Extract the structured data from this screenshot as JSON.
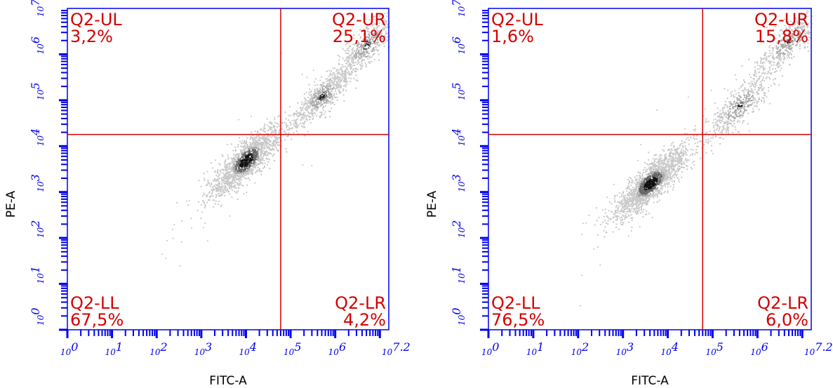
{
  "chart_data": [
    {
      "type": "scatter",
      "subtype": "flow-cytometry density dot plot",
      "xlabel": "FITC-A",
      "ylabel": "PE-A",
      "x_scale": "log",
      "y_scale": "log",
      "xlim": [
        1,
        15848932
      ],
      "ylim": [
        1,
        10000000
      ],
      "x_tick_labels": [
        {
          "base": "10",
          "exp": "0"
        },
        {
          "base": "10",
          "exp": "1"
        },
        {
          "base": "10",
          "exp": "2"
        },
        {
          "base": "10",
          "exp": "3"
        },
        {
          "base": "10",
          "exp": "4"
        },
        {
          "base": "10",
          "exp": "5"
        },
        {
          "base": "10",
          "exp": "6"
        },
        {
          "base": "10",
          "exp": "7.2"
        }
      ],
      "y_tick_labels": [
        {
          "base": "10",
          "exp": "0"
        },
        {
          "base": "10",
          "exp": "1"
        },
        {
          "base": "10",
          "exp": "2"
        },
        {
          "base": "10",
          "exp": "3"
        },
        {
          "base": "10",
          "exp": "4"
        },
        {
          "base": "10",
          "exp": "5"
        },
        {
          "base": "10",
          "exp": "6"
        },
        {
          "base": "10",
          "exp": "7"
        }
      ],
      "gate": {
        "x": 60000,
        "y": 18000
      },
      "quadrants": [
        {
          "name": "Q2-UL",
          "percent": "3,2%",
          "position": "top-left"
        },
        {
          "name": "Q2-UR",
          "percent": "25,1%",
          "position": "top-right"
        },
        {
          "name": "Q2-LL",
          "percent": "67,5%",
          "position": "bottom-left"
        },
        {
          "name": "Q2-LR",
          "percent": "4,2%",
          "position": "bottom-right"
        }
      ],
      "populations": [
        {
          "log_x": 4.0,
          "log_y": 3.7,
          "weight": 1.0,
          "spread": 0.35
        },
        {
          "log_x": 5.7,
          "log_y": 5.1,
          "weight": 0.45,
          "spread": 0.3
        },
        {
          "log_x": 6.7,
          "log_y": 6.2,
          "weight": 0.35,
          "spread": 0.35
        }
      ],
      "grid": false,
      "colors": {
        "axis": "#0000ee",
        "gate": "#d40000",
        "dots_light": "#c8c8c8",
        "dots_dark": "#111111"
      }
    },
    {
      "type": "scatter",
      "subtype": "flow-cytometry density dot plot",
      "xlabel": "FITC-A",
      "ylabel": "PE-A",
      "x_scale": "log",
      "y_scale": "log",
      "xlim": [
        1,
        15848932
      ],
      "ylim": [
        1,
        10000000
      ],
      "x_tick_labels": [
        {
          "base": "10",
          "exp": "0"
        },
        {
          "base": "10",
          "exp": "1"
        },
        {
          "base": "10",
          "exp": "2"
        },
        {
          "base": "10",
          "exp": "3"
        },
        {
          "base": "10",
          "exp": "4"
        },
        {
          "base": "10",
          "exp": "5"
        },
        {
          "base": "10",
          "exp": "6"
        },
        {
          "base": "10",
          "exp": "7.2"
        }
      ],
      "y_tick_labels": [
        {
          "base": "10",
          "exp": "0"
        },
        {
          "base": "10",
          "exp": "1"
        },
        {
          "base": "10",
          "exp": "2"
        },
        {
          "base": "10",
          "exp": "3"
        },
        {
          "base": "10",
          "exp": "4"
        },
        {
          "base": "10",
          "exp": "5"
        },
        {
          "base": "10",
          "exp": "6"
        },
        {
          "base": "10",
          "exp": "7"
        }
      ],
      "gate": {
        "x": 60000,
        "y": 18000
      },
      "quadrants": [
        {
          "name": "Q2-UL",
          "percent": "1,6%",
          "position": "top-left"
        },
        {
          "name": "Q2-UR",
          "percent": "15,8%",
          "position": "top-right"
        },
        {
          "name": "Q2-LL",
          "percent": "76,5%",
          "position": "bottom-left"
        },
        {
          "name": "Q2-LR",
          "percent": "6,0%",
          "position": "bottom-right"
        }
      ],
      "populations": [
        {
          "log_x": 3.6,
          "log_y": 3.2,
          "weight": 1.0,
          "spread": 0.35
        },
        {
          "log_x": 5.6,
          "log_y": 4.9,
          "weight": 0.3,
          "spread": 0.35
        },
        {
          "log_x": 6.7,
          "log_y": 6.3,
          "weight": 0.3,
          "spread": 0.35
        }
      ],
      "grid": false,
      "colors": {
        "axis": "#0000ee",
        "gate": "#d40000",
        "dots_light": "#c8c8c8",
        "dots_dark": "#111111"
      }
    }
  ]
}
